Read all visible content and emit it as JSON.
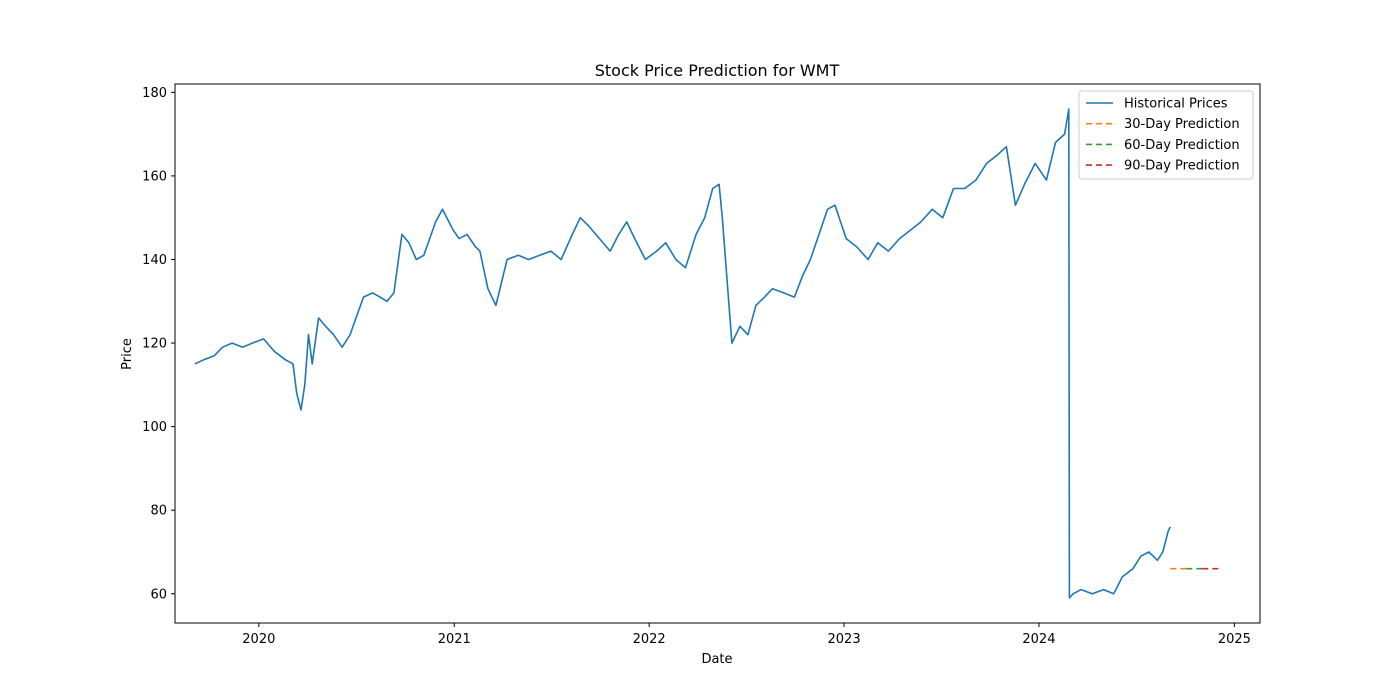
{
  "chart_data": {
    "type": "line",
    "title": "Stock Price Prediction for WMT",
    "xlabel": "Date",
    "ylabel": "Price",
    "xlim": [
      "2019-07-28",
      "2025-02-18"
    ],
    "ylim": [
      53,
      182
    ],
    "grid": false,
    "legend_position": "top-right",
    "x_ticks": [
      "2020",
      "2021",
      "2022",
      "2023",
      "2024",
      "2025"
    ],
    "y_ticks": [
      60,
      80,
      100,
      120,
      140,
      160,
      180
    ],
    "series": [
      {
        "name": "Historical Prices",
        "color": "#1f77b4",
        "style": "solid",
        "x": [
          "2019-09-03",
          "2019-09-20",
          "2019-10-10",
          "2019-10-25",
          "2019-11-12",
          "2019-12-02",
          "2019-12-20",
          "2020-01-10",
          "2020-01-30",
          "2020-02-20",
          "2020-03-05",
          "2020-03-12",
          "2020-03-20",
          "2020-03-27",
          "2020-04-03",
          "2020-04-10",
          "2020-04-22",
          "2020-05-05",
          "2020-05-20",
          "2020-06-05",
          "2020-06-20",
          "2020-07-01",
          "2020-07-15",
          "2020-08-01",
          "2020-08-15",
          "2020-08-28",
          "2020-09-10",
          "2020-09-25",
          "2020-10-08",
          "2020-10-22",
          "2020-11-05",
          "2020-11-16",
          "2020-11-27",
          "2020-12-10",
          "2020-12-30",
          "2021-01-10",
          "2021-01-25",
          "2021-02-10",
          "2021-02-18",
          "2021-03-05",
          "2021-03-20",
          "2021-04-10",
          "2021-05-01",
          "2021-05-20",
          "2021-06-10",
          "2021-07-01",
          "2021-07-20",
          "2021-08-10",
          "2021-08-25",
          "2021-09-10",
          "2021-09-30",
          "2021-10-20",
          "2021-11-05",
          "2021-11-20",
          "2021-12-05",
          "2021-12-25",
          "2022-01-15",
          "2022-02-01",
          "2022-02-20",
          "2022-03-10",
          "2022-03-30",
          "2022-04-15",
          "2022-04-30",
          "2022-05-12",
          "2022-05-18",
          "2022-06-05",
          "2022-06-20",
          "2022-07-05",
          "2022-07-20",
          "2022-08-05",
          "2022-08-20",
          "2022-09-10",
          "2022-09-30",
          "2022-10-15",
          "2022-10-30",
          "2022-11-15",
          "2022-12-01",
          "2022-12-15",
          "2023-01-05",
          "2023-01-25",
          "2023-02-15",
          "2023-03-05",
          "2023-03-25",
          "2023-04-15",
          "2023-05-05",
          "2023-05-25",
          "2023-06-15",
          "2023-07-05",
          "2023-07-25",
          "2023-08-15",
          "2023-09-05",
          "2023-09-25",
          "2023-10-15",
          "2023-11-01",
          "2023-11-12",
          "2023-11-18",
          "2023-12-05",
          "2023-12-25",
          "2024-01-15",
          "2024-02-01",
          "2024-02-18",
          "2024-02-26",
          "2024-02-27",
          "2024-03-05",
          "2024-03-20",
          "2024-04-10",
          "2024-05-01",
          "2024-05-20",
          "2024-06-05",
          "2024-06-25",
          "2024-07-10",
          "2024-07-25",
          "2024-08-10",
          "2024-08-20",
          "2024-08-30",
          "2024-09-03"
        ],
        "values": [
          115,
          116,
          117,
          119,
          120,
          119,
          120,
          121,
          118,
          116,
          115,
          108,
          104,
          110,
          122,
          115,
          126,
          124,
          122,
          119,
          122,
          126,
          131,
          132,
          131,
          130,
          132,
          146,
          144,
          140,
          141,
          145,
          149,
          152,
          147,
          145,
          146,
          143,
          142,
          133,
          129,
          140,
          141,
          140,
          141,
          142,
          140,
          146,
          150,
          148,
          145,
          142,
          146,
          149,
          145,
          140,
          142,
          144,
          140,
          138,
          146,
          150,
          157,
          158,
          150,
          120,
          124,
          122,
          129,
          131,
          133,
          132,
          131,
          136,
          140,
          146,
          152,
          153,
          145,
          143,
          140,
          144,
          142,
          145,
          147,
          149,
          152,
          150,
          157,
          157,
          159,
          163,
          165,
          167,
          158,
          153,
          158,
          163,
          159,
          168,
          170,
          176,
          59,
          60,
          61,
          60,
          61,
          60,
          64,
          66,
          69,
          70,
          68,
          70,
          75,
          76
        ]
      },
      {
        "name": "30-Day Prediction",
        "color": "#ff7f0e",
        "style": "dashed",
        "x": [
          "2024-09-03",
          "2024-10-03"
        ],
        "values": [
          66,
          66
        ]
      },
      {
        "name": "60-Day Prediction",
        "color": "#2ca02c",
        "style": "dashed",
        "x": [
          "2024-10-03",
          "2024-11-02"
        ],
        "values": [
          66,
          66
        ]
      },
      {
        "name": "90-Day Prediction",
        "color": "#d62728",
        "style": "dashed",
        "x": [
          "2024-11-02",
          "2024-12-02"
        ],
        "values": [
          66,
          66
        ]
      }
    ]
  }
}
